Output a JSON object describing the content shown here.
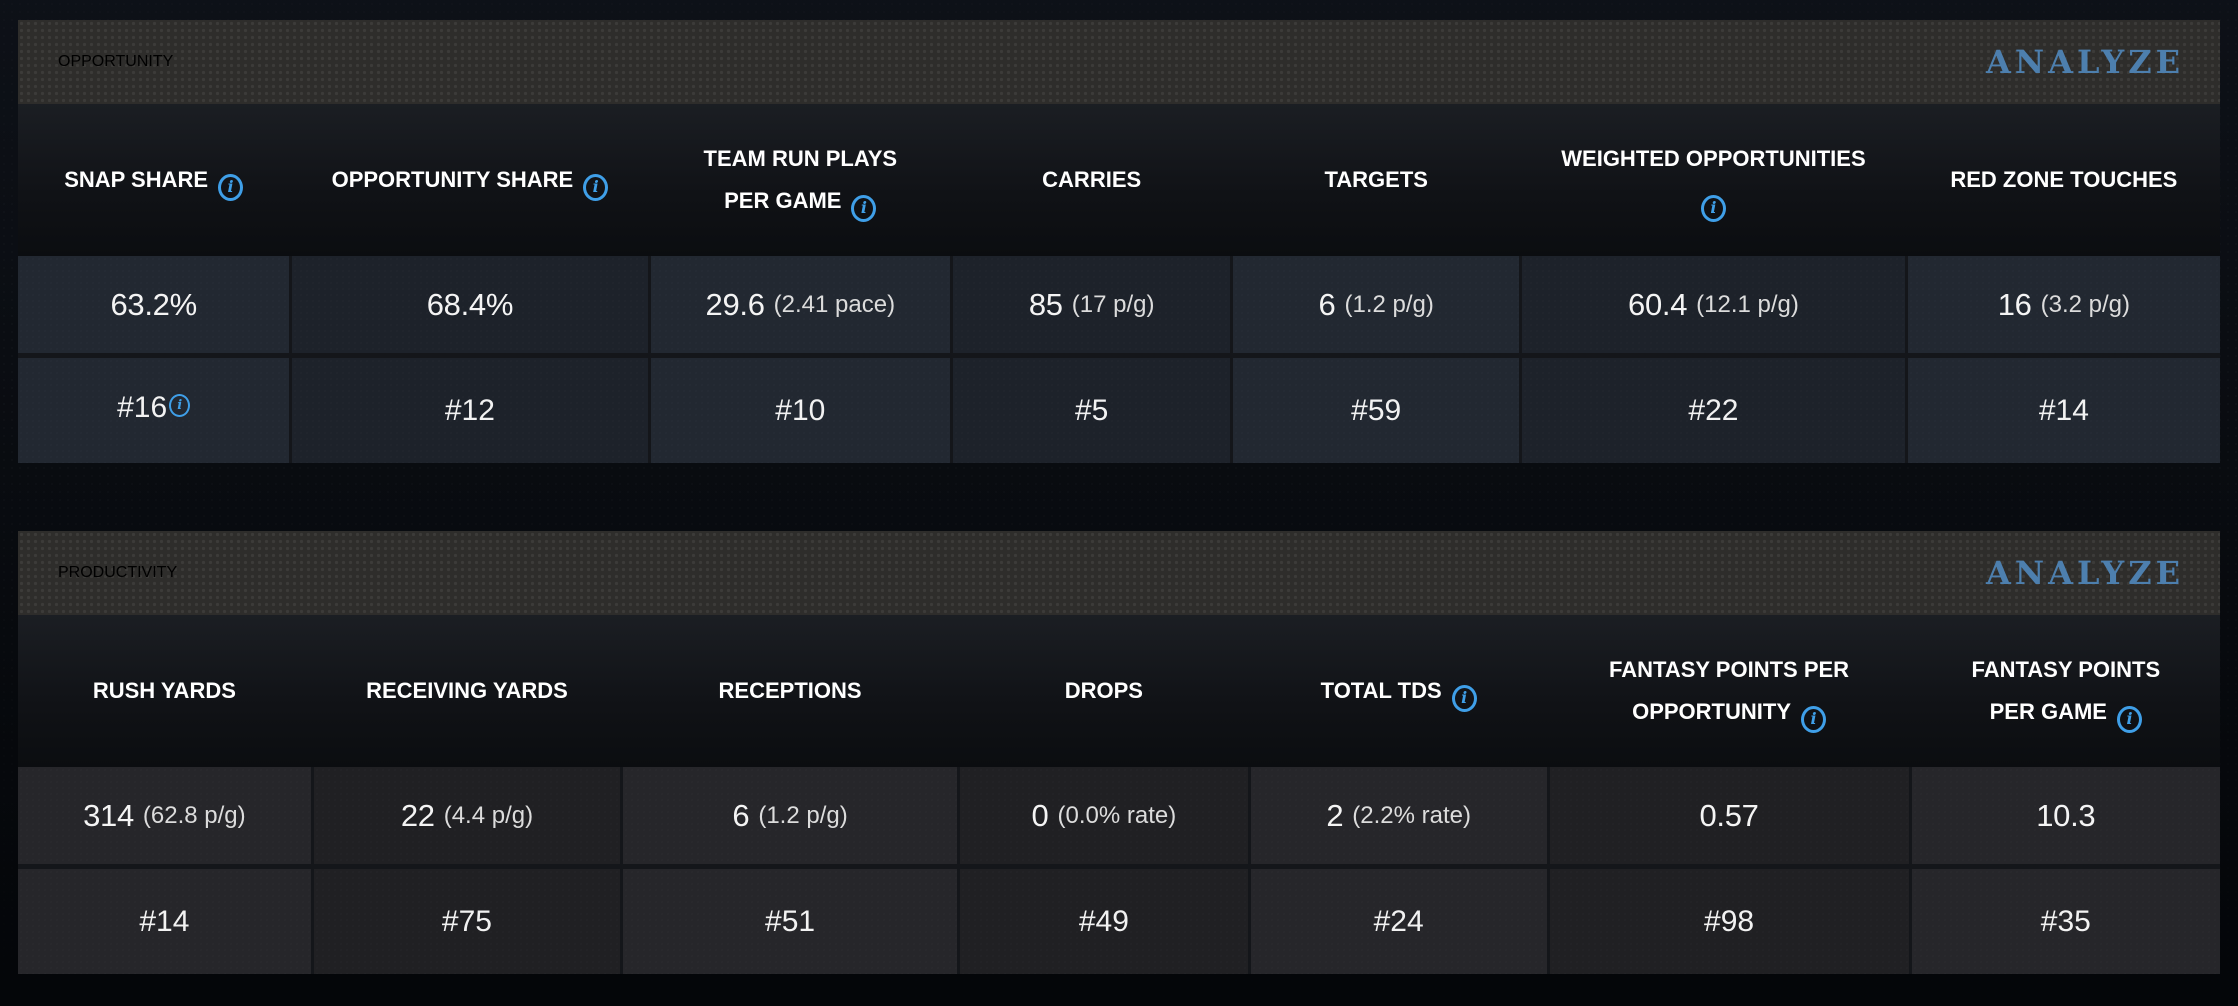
{
  "colors": {
    "analyze_text": "#4d7fae",
    "info_icon": "#3f9fe8",
    "opportunity_cell": "#222831",
    "productivity_cell": "#26262a",
    "section_bar": "#2e2d2b"
  },
  "sections": [
    {
      "title": "OPPORTUNITY",
      "analyze_label": "ANALYZE",
      "columns": [
        {
          "label": "SNAP SHARE",
          "info": true,
          "value": "63.2%",
          "note": "",
          "rank": "#16",
          "rank_info": true
        },
        {
          "label": "OPPORTUNITY SHARE",
          "info": true,
          "value": "68.4%",
          "note": "",
          "rank": "#12"
        },
        {
          "label": "TEAM RUN PLAYS",
          "label2": "PER GAME",
          "info": true,
          "value": "29.6",
          "note": "(2.41 pace)",
          "rank": "#10"
        },
        {
          "label": "CARRIES",
          "info": false,
          "value": "85",
          "note": "(17 p/g)",
          "rank": "#5"
        },
        {
          "label": "TARGETS",
          "info": false,
          "value": "6",
          "note": "(1.2 p/g)",
          "rank": "#59"
        },
        {
          "label": "WEIGHTED OPPORTUNITIES",
          "label2": "",
          "info": true,
          "value": "60.4",
          "note": "(12.1 p/g)",
          "rank": "#22"
        },
        {
          "label": "RED ZONE TOUCHES",
          "info": false,
          "value": "16",
          "note": "(3.2 p/g)",
          "rank": "#14"
        }
      ]
    },
    {
      "title": "PRODUCTIVITY",
      "analyze_label": "ANALYZE",
      "columns": [
        {
          "label": "RUSH YARDS",
          "info": false,
          "value": "314",
          "note": "(62.8 p/g)",
          "rank": "#14"
        },
        {
          "label": "RECEIVING YARDS",
          "info": false,
          "value": "22",
          "note": "(4.4 p/g)",
          "rank": "#75"
        },
        {
          "label": "RECEPTIONS",
          "info": false,
          "value": "6",
          "note": "(1.2 p/g)",
          "rank": "#51"
        },
        {
          "label": "DROPS",
          "info": false,
          "value": "0",
          "note": "(0.0% rate)",
          "rank": "#49"
        },
        {
          "label": "TOTAL TDS",
          "info": true,
          "value": "2",
          "note": "(2.2% rate)",
          "rank": "#24"
        },
        {
          "label": "FANTASY POINTS PER",
          "label2": "OPPORTUNITY",
          "info": true,
          "value": "0.57",
          "note": "",
          "rank": "#98"
        },
        {
          "label": "FANTASY POINTS",
          "label2": "PER GAME",
          "info": true,
          "value": "10.3",
          "note": "",
          "rank": "#35"
        }
      ]
    }
  ]
}
